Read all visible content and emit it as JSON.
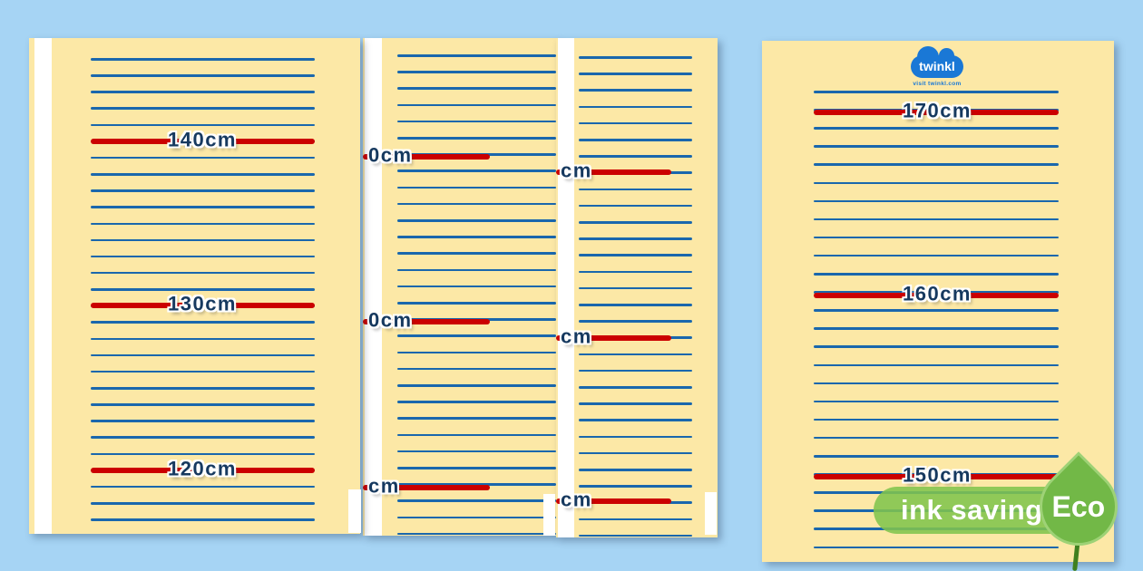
{
  "colors": {
    "background": "#a6d4f4",
    "page": "#fce8a6",
    "ruled_line": "#1a67ad",
    "marker_line": "#cb0000",
    "label_text": "#16395f",
    "eco_green": "#72b847",
    "logo_blue": "#1a78d6"
  },
  "logo": {
    "brand": "twinkl",
    "tagline": "visit twinkl.com"
  },
  "eco": {
    "bar_label": "ink saving",
    "leaf_label": "Eco"
  },
  "pages": [
    {
      "id": "left",
      "markers": [
        {
          "label": "140cm"
        },
        {
          "label": "130cm"
        },
        {
          "label": "120cm"
        }
      ]
    },
    {
      "id": "middle-1",
      "markers": [
        {
          "label": "0cm"
        },
        {
          "label": "0cm"
        },
        {
          "label": "cm"
        }
      ]
    },
    {
      "id": "middle-2",
      "markers": [
        {
          "label": "cm"
        },
        {
          "label": "cm"
        },
        {
          "label": "cm"
        }
      ]
    },
    {
      "id": "right",
      "markers": [
        {
          "label": "170cm"
        },
        {
          "label": "160cm"
        },
        {
          "label": "150cm"
        }
      ]
    }
  ]
}
